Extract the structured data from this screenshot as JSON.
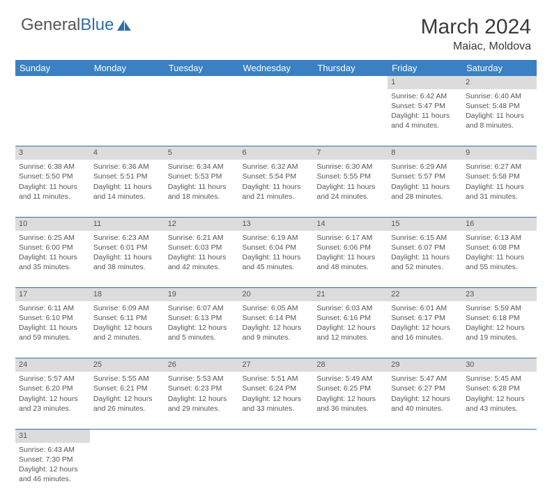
{
  "logo": {
    "text1": "General",
    "text2": "Blue"
  },
  "title": "March 2024",
  "location": "Maiac, Moldova",
  "dayHeaders": [
    "Sunday",
    "Monday",
    "Tuesday",
    "Wednesday",
    "Thursday",
    "Friday",
    "Saturday"
  ],
  "colors": {
    "headerBg": "#3a80c2",
    "headerText": "#ffffff",
    "dayNumBg": "#dcdcdc",
    "borderColor": "#2f6ea9",
    "textColor": "#555555",
    "logoBlue": "#2f6ea9"
  },
  "weeks": [
    [
      null,
      null,
      null,
      null,
      null,
      {
        "n": 1,
        "sr": "6:42 AM",
        "ss": "5:47 PM",
        "dl": "11 hours and 4 minutes."
      },
      {
        "n": 2,
        "sr": "6:40 AM",
        "ss": "5:48 PM",
        "dl": "11 hours and 8 minutes."
      }
    ],
    [
      {
        "n": 3,
        "sr": "6:38 AM",
        "ss": "5:50 PM",
        "dl": "11 hours and 11 minutes."
      },
      {
        "n": 4,
        "sr": "6:36 AM",
        "ss": "5:51 PM",
        "dl": "11 hours and 14 minutes."
      },
      {
        "n": 5,
        "sr": "6:34 AM",
        "ss": "5:53 PM",
        "dl": "11 hours and 18 minutes."
      },
      {
        "n": 6,
        "sr": "6:32 AM",
        "ss": "5:54 PM",
        "dl": "11 hours and 21 minutes."
      },
      {
        "n": 7,
        "sr": "6:30 AM",
        "ss": "5:55 PM",
        "dl": "11 hours and 24 minutes."
      },
      {
        "n": 8,
        "sr": "6:29 AM",
        "ss": "5:57 PM",
        "dl": "11 hours and 28 minutes."
      },
      {
        "n": 9,
        "sr": "6:27 AM",
        "ss": "5:58 PM",
        "dl": "11 hours and 31 minutes."
      }
    ],
    [
      {
        "n": 10,
        "sr": "6:25 AM",
        "ss": "6:00 PM",
        "dl": "11 hours and 35 minutes."
      },
      {
        "n": 11,
        "sr": "6:23 AM",
        "ss": "6:01 PM",
        "dl": "11 hours and 38 minutes."
      },
      {
        "n": 12,
        "sr": "6:21 AM",
        "ss": "6:03 PM",
        "dl": "11 hours and 42 minutes."
      },
      {
        "n": 13,
        "sr": "6:19 AM",
        "ss": "6:04 PM",
        "dl": "11 hours and 45 minutes."
      },
      {
        "n": 14,
        "sr": "6:17 AM",
        "ss": "6:06 PM",
        "dl": "11 hours and 48 minutes."
      },
      {
        "n": 15,
        "sr": "6:15 AM",
        "ss": "6:07 PM",
        "dl": "11 hours and 52 minutes."
      },
      {
        "n": 16,
        "sr": "6:13 AM",
        "ss": "6:08 PM",
        "dl": "11 hours and 55 minutes."
      }
    ],
    [
      {
        "n": 17,
        "sr": "6:11 AM",
        "ss": "6:10 PM",
        "dl": "11 hours and 59 minutes."
      },
      {
        "n": 18,
        "sr": "6:09 AM",
        "ss": "6:11 PM",
        "dl": "12 hours and 2 minutes."
      },
      {
        "n": 19,
        "sr": "6:07 AM",
        "ss": "6:13 PM",
        "dl": "12 hours and 5 minutes."
      },
      {
        "n": 20,
        "sr": "6:05 AM",
        "ss": "6:14 PM",
        "dl": "12 hours and 9 minutes."
      },
      {
        "n": 21,
        "sr": "6:03 AM",
        "ss": "6:16 PM",
        "dl": "12 hours and 12 minutes."
      },
      {
        "n": 22,
        "sr": "6:01 AM",
        "ss": "6:17 PM",
        "dl": "12 hours and 16 minutes."
      },
      {
        "n": 23,
        "sr": "5:59 AM",
        "ss": "6:18 PM",
        "dl": "12 hours and 19 minutes."
      }
    ],
    [
      {
        "n": 24,
        "sr": "5:57 AM",
        "ss": "6:20 PM",
        "dl": "12 hours and 23 minutes."
      },
      {
        "n": 25,
        "sr": "5:55 AM",
        "ss": "6:21 PM",
        "dl": "12 hours and 26 minutes."
      },
      {
        "n": 26,
        "sr": "5:53 AM",
        "ss": "6:23 PM",
        "dl": "12 hours and 29 minutes."
      },
      {
        "n": 27,
        "sr": "5:51 AM",
        "ss": "6:24 PM",
        "dl": "12 hours and 33 minutes."
      },
      {
        "n": 28,
        "sr": "5:49 AM",
        "ss": "6:25 PM",
        "dl": "12 hours and 36 minutes."
      },
      {
        "n": 29,
        "sr": "5:47 AM",
        "ss": "6:27 PM",
        "dl": "12 hours and 40 minutes."
      },
      {
        "n": 30,
        "sr": "5:45 AM",
        "ss": "6:28 PM",
        "dl": "12 hours and 43 minutes."
      }
    ],
    [
      {
        "n": 31,
        "sr": "6:43 AM",
        "ss": "7:30 PM",
        "dl": "12 hours and 46 minutes."
      },
      null,
      null,
      null,
      null,
      null,
      null
    ]
  ]
}
